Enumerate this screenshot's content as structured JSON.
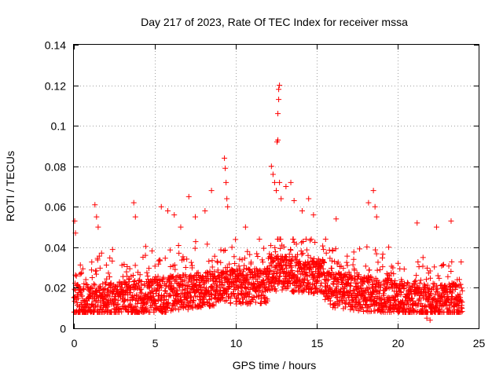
{
  "chart_data": {
    "type": "scatter",
    "title": "Day 217 of 2023, Rate Of TEC Index for receiver mssa",
    "xlabel": "GPS time / hours",
    "ylabel": "ROTI / TECUs",
    "xlim": [
      0,
      25
    ],
    "ylim": [
      0,
      0.14
    ],
    "x_ticks": [
      0,
      5,
      10,
      15,
      20,
      25
    ],
    "x_tick_labels": [
      "0",
      "5",
      "10",
      "15",
      "20",
      "25"
    ],
    "y_ticks": [
      0,
      0.02,
      0.04,
      0.06,
      0.08,
      0.1,
      0.12,
      0.14
    ],
    "y_tick_labels": [
      "0",
      "0.02",
      "0.04",
      "0.06",
      "0.08",
      "0.1",
      "0.12",
      "0.14"
    ],
    "grid": true,
    "marker": "plus",
    "series_color": "#ff0000",
    "series": [
      {
        "name": "ROTI",
        "x_range": [
          0,
          24
        ],
        "typical_band": [
          0.008,
          0.04
        ],
        "outliers": [
          {
            "x": 0.05,
            "y": 0.053
          },
          {
            "x": 0.1,
            "y": 0.047
          },
          {
            "x": 1.3,
            "y": 0.061
          },
          {
            "x": 1.4,
            "y": 0.055
          },
          {
            "x": 1.5,
            "y": 0.05
          },
          {
            "x": 3.7,
            "y": 0.062
          },
          {
            "x": 3.8,
            "y": 0.055
          },
          {
            "x": 5.4,
            "y": 0.06
          },
          {
            "x": 5.8,
            "y": 0.058
          },
          {
            "x": 6.2,
            "y": 0.056
          },
          {
            "x": 6.6,
            "y": 0.05
          },
          {
            "x": 7.1,
            "y": 0.065
          },
          {
            "x": 7.5,
            "y": 0.055
          },
          {
            "x": 8.1,
            "y": 0.058
          },
          {
            "x": 8.5,
            "y": 0.068
          },
          {
            "x": 9.3,
            "y": 0.084
          },
          {
            "x": 9.35,
            "y": 0.079
          },
          {
            "x": 9.4,
            "y": 0.072
          },
          {
            "x": 9.45,
            "y": 0.064
          },
          {
            "x": 9.5,
            "y": 0.06
          },
          {
            "x": 10.6,
            "y": 0.05
          },
          {
            "x": 12.2,
            "y": 0.08
          },
          {
            "x": 12.3,
            "y": 0.076
          },
          {
            "x": 12.4,
            "y": 0.072
          },
          {
            "x": 12.5,
            "y": 0.068
          },
          {
            "x": 12.55,
            "y": 0.092
          },
          {
            "x": 12.6,
            "y": 0.093
          },
          {
            "x": 12.6,
            "y": 0.106
          },
          {
            "x": 12.65,
            "y": 0.113
          },
          {
            "x": 12.65,
            "y": 0.118
          },
          {
            "x": 12.7,
            "y": 0.12
          },
          {
            "x": 12.7,
            "y": 0.072
          },
          {
            "x": 12.8,
            "y": 0.064
          },
          {
            "x": 13.1,
            "y": 0.07
          },
          {
            "x": 13.4,
            "y": 0.072
          },
          {
            "x": 13.6,
            "y": 0.063
          },
          {
            "x": 14.1,
            "y": 0.058
          },
          {
            "x": 14.5,
            "y": 0.064
          },
          {
            "x": 14.8,
            "y": 0.056
          },
          {
            "x": 16.2,
            "y": 0.054
          },
          {
            "x": 18.2,
            "y": 0.062
          },
          {
            "x": 18.5,
            "y": 0.068
          },
          {
            "x": 18.6,
            "y": 0.06
          },
          {
            "x": 18.7,
            "y": 0.055
          },
          {
            "x": 21.2,
            "y": 0.052
          },
          {
            "x": 22.4,
            "y": 0.05
          },
          {
            "x": 23.3,
            "y": 0.053
          },
          {
            "x": 22.0,
            "y": 0.004
          },
          {
            "x": 21.8,
            "y": 0.005
          }
        ]
      }
    ]
  }
}
